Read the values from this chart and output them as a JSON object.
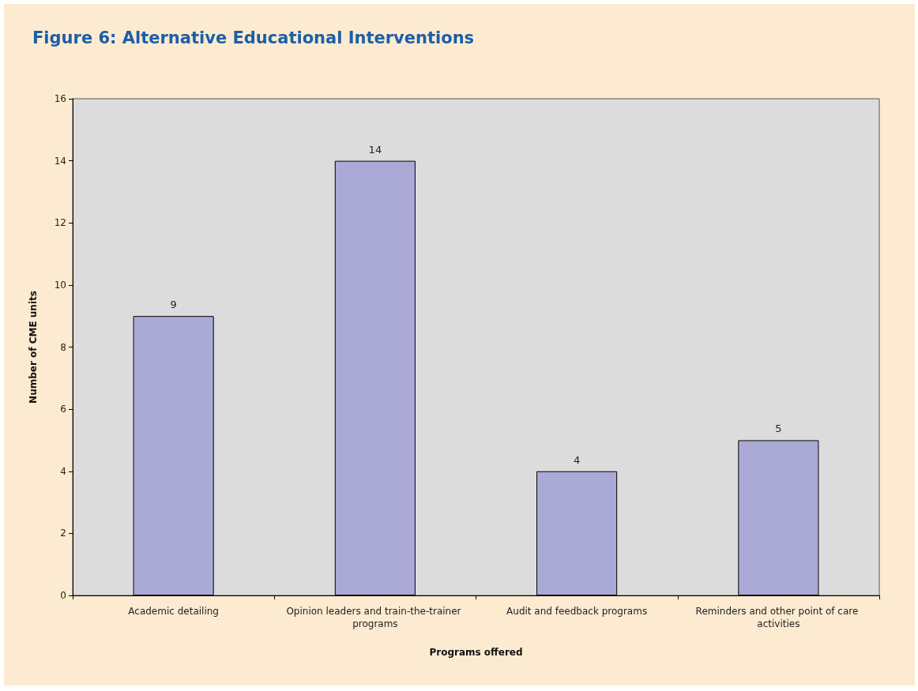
{
  "chart_data": {
    "type": "bar",
    "title": "Figure 6: Alternative Educational Interventions",
    "xlabel": "Programs offered",
    "ylabel": "Number of CME units",
    "categories": [
      "Academic detailing",
      "Opinion leaders and train-the-trainer programs",
      "Audit and feedback programs",
      "Reminders and other point of care activities"
    ],
    "values": [
      9,
      14,
      4,
      5
    ],
    "color": "#abaad6",
    "ylim": [
      0,
      16
    ],
    "yticks": [
      0,
      2,
      4,
      6,
      8,
      10,
      12,
      14,
      16
    ],
    "grid": false,
    "data_labels": true
  }
}
